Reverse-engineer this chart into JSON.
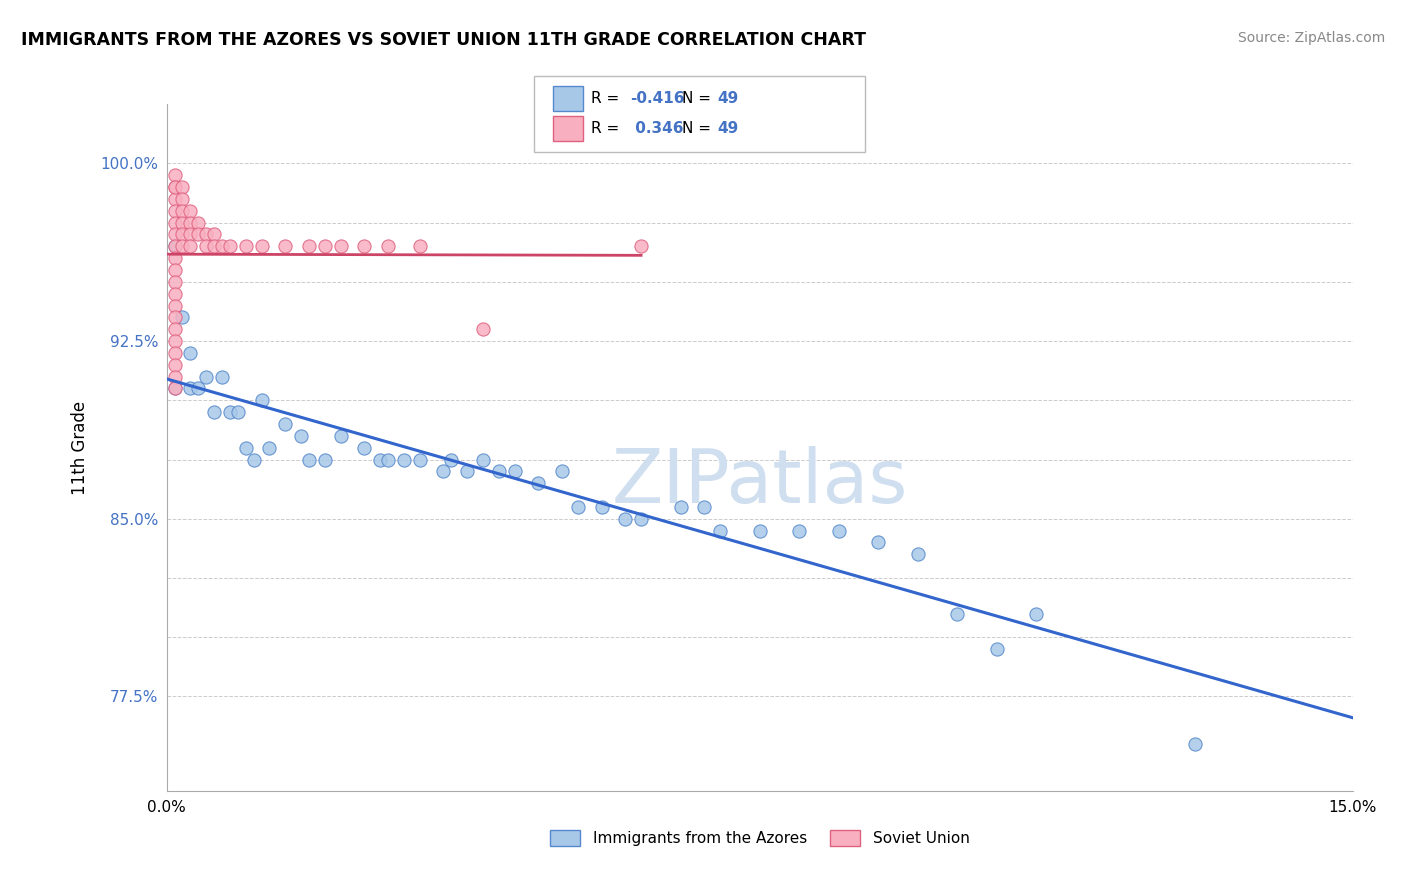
{
  "title": "IMMIGRANTS FROM THE AZORES VS SOVIET UNION 11TH GRADE CORRELATION CHART",
  "source": "Source: ZipAtlas.com",
  "ylabel": "11th Grade",
  "xlim": [
    0.0,
    0.15
  ],
  "ylim": [
    0.735,
    1.025
  ],
  "r_azores": -0.416,
  "n_azores": 49,
  "r_soviet": 0.346,
  "n_soviet": 49,
  "color_azores_fill": "#a8c8e8",
  "color_azores_edge": "#5588cc",
  "color_soviet_fill": "#f8b0c0",
  "color_soviet_edge": "#e06080",
  "color_azores_line": "#3366cc",
  "color_soviet_line": "#cc4466",
  "watermark_color": "#d0dff0",
  "ytick_vals": [
    0.775,
    0.8,
    0.825,
    0.85,
    0.875,
    0.9,
    0.925,
    0.95,
    0.975,
    1.0
  ],
  "ytick_labels": [
    "77.5%",
    "",
    "",
    "85.0%",
    "",
    "",
    "92.5%",
    "",
    "",
    "100.0%"
  ],
  "azores_x": [
    0.001,
    0.001,
    0.002,
    0.003,
    0.003,
    0.004,
    0.005,
    0.006,
    0.007,
    0.008,
    0.009,
    0.01,
    0.011,
    0.012,
    0.013,
    0.015,
    0.017,
    0.018,
    0.02,
    0.022,
    0.025,
    0.027,
    0.028,
    0.03,
    0.032,
    0.035,
    0.036,
    0.038,
    0.04,
    0.042,
    0.044,
    0.047,
    0.05,
    0.052,
    0.055,
    0.058,
    0.06,
    0.065,
    0.068,
    0.07,
    0.075,
    0.08,
    0.085,
    0.09,
    0.095,
    0.1,
    0.105,
    0.11,
    0.13
  ],
  "azores_y": [
    0.965,
    0.905,
    0.935,
    0.905,
    0.92,
    0.905,
    0.91,
    0.895,
    0.91,
    0.895,
    0.895,
    0.88,
    0.875,
    0.9,
    0.88,
    0.89,
    0.885,
    0.875,
    0.875,
    0.885,
    0.88,
    0.875,
    0.875,
    0.875,
    0.875,
    0.87,
    0.875,
    0.87,
    0.875,
    0.87,
    0.87,
    0.865,
    0.87,
    0.855,
    0.855,
    0.85,
    0.85,
    0.855,
    0.855,
    0.845,
    0.845,
    0.845,
    0.845,
    0.84,
    0.835,
    0.81,
    0.795,
    0.81,
    0.755
  ],
  "soviet_x": [
    0.001,
    0.001,
    0.001,
    0.001,
    0.001,
    0.001,
    0.001,
    0.001,
    0.001,
    0.001,
    0.001,
    0.001,
    0.001,
    0.001,
    0.001,
    0.001,
    0.001,
    0.001,
    0.001,
    0.001,
    0.002,
    0.002,
    0.002,
    0.002,
    0.002,
    0.002,
    0.003,
    0.003,
    0.003,
    0.003,
    0.004,
    0.004,
    0.005,
    0.005,
    0.006,
    0.006,
    0.007,
    0.008,
    0.01,
    0.012,
    0.015,
    0.018,
    0.02,
    0.022,
    0.025,
    0.028,
    0.032,
    0.04,
    0.06
  ],
  "soviet_y": [
    0.995,
    0.99,
    0.985,
    0.98,
    0.975,
    0.97,
    0.965,
    0.96,
    0.955,
    0.95,
    0.945,
    0.94,
    0.935,
    0.93,
    0.925,
    0.92,
    0.915,
    0.91,
    0.905,
    0.99,
    0.99,
    0.985,
    0.98,
    0.975,
    0.97,
    0.965,
    0.98,
    0.975,
    0.97,
    0.965,
    0.975,
    0.97,
    0.97,
    0.965,
    0.97,
    0.965,
    0.965,
    0.965,
    0.965,
    0.965,
    0.965,
    0.965,
    0.965,
    0.965,
    0.965,
    0.965,
    0.965,
    0.93,
    0.965
  ]
}
